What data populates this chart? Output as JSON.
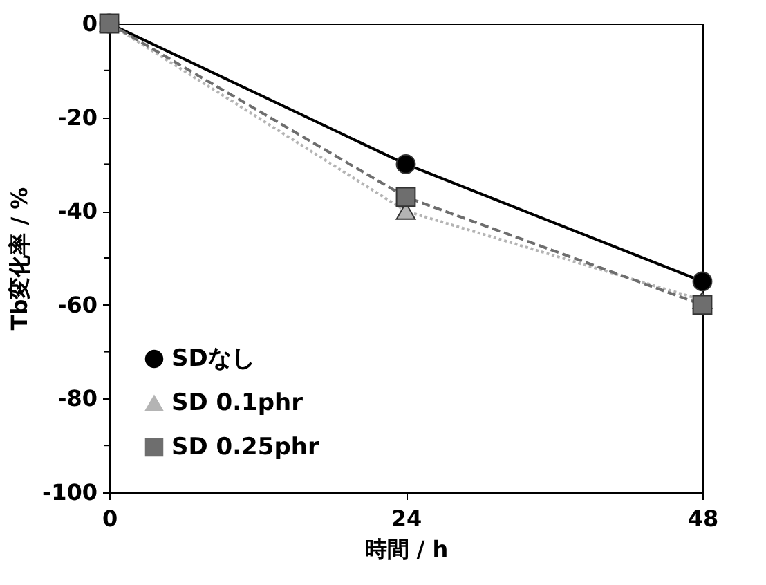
{
  "chart_data": {
    "type": "line",
    "xlabel": "時間 / h",
    "ylabel": "Tb変化率 / %",
    "x": [
      0,
      24,
      48
    ],
    "xlim": [
      0,
      48
    ],
    "xticks": [
      0,
      24,
      48
    ],
    "ylim": [
      -100,
      0
    ],
    "yticks": [
      -100,
      {
        "value": -90,
        "label": null
      },
      -80,
      {
        "value": -70,
        "label": null
      },
      -60,
      {
        "value": -50,
        "label": null
      },
      -40,
      {
        "value": -30,
        "label": null
      },
      -20,
      {
        "value": -10,
        "label": null
      },
      0
    ],
    "grid": false,
    "legend": "bottom left",
    "series": [
      {
        "name": "SDなし",
        "color": "#000000",
        "marker": "circle",
        "line_style": "solid",
        "values": [
          0,
          -30,
          -55
        ]
      },
      {
        "name": "SD 0.1phr",
        "color": "#b4b4b4",
        "marker": "triangle",
        "line_style": "dotted",
        "values": [
          0,
          -40,
          -59
        ]
      },
      {
        "name": "SD 0.25phr",
        "color": "#6e6e6e",
        "marker": "square",
        "line_style": "dashed",
        "values": [
          0,
          -37,
          -60
        ]
      }
    ]
  }
}
